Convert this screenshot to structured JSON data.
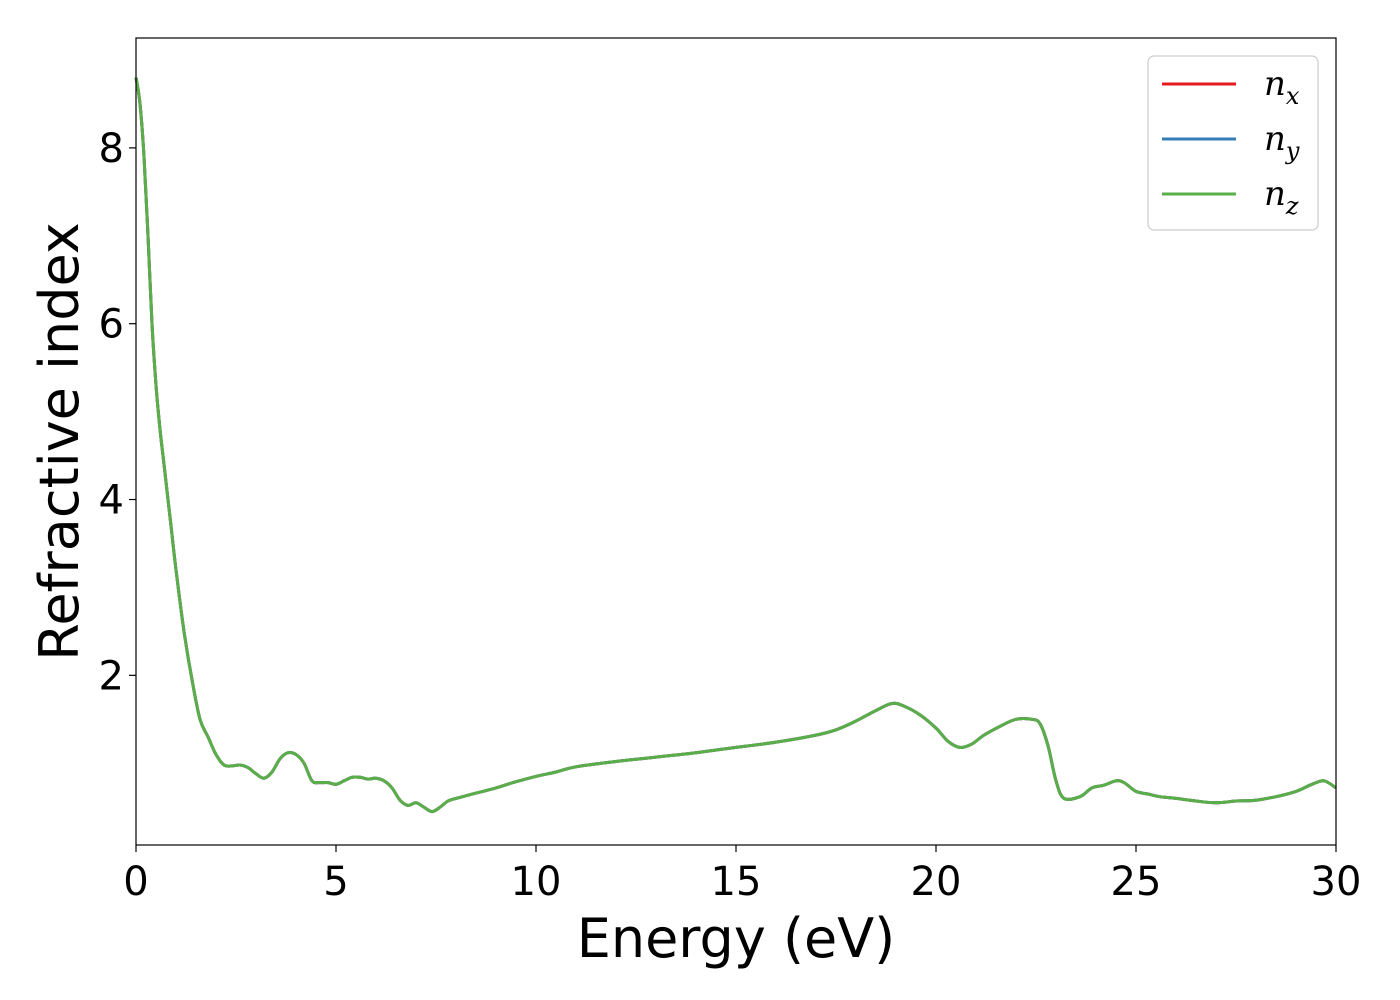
{
  "chart_data": {
    "type": "line",
    "xlabel": "Energy (eV)",
    "ylabel": "Refractive index",
    "xlim": [
      0,
      30
    ],
    "ylim": [
      0.07,
      9.25
    ],
    "xticks": [
      0,
      5,
      10,
      15,
      20,
      25,
      30
    ],
    "yticks": [
      2,
      4,
      6,
      8
    ],
    "legend_position": "top-right",
    "grid": false,
    "series": [
      {
        "name": "n",
        "subscript": "x",
        "color": "#e41a1c"
      },
      {
        "name": "n",
        "subscript": "y",
        "color": "#377eb8"
      },
      {
        "name": "n",
        "subscript": "z",
        "color": "#5aae4a"
      }
    ],
    "x": [
      0,
      0.1,
      0.2,
      0.3,
      0.4,
      0.5,
      0.6,
      0.7,
      0.8,
      0.9,
      1.0,
      1.2,
      1.4,
      1.6,
      1.8,
      2.0,
      2.2,
      2.4,
      2.6,
      2.8,
      3.0,
      3.2,
      3.4,
      3.6,
      3.8,
      4.0,
      4.2,
      4.4,
      4.6,
      4.8,
      5.0,
      5.2,
      5.4,
      5.6,
      5.8,
      6.0,
      6.2,
      6.4,
      6.6,
      6.8,
      7.0,
      7.2,
      7.4,
      7.6,
      7.8,
      8.0,
      8.5,
      9.0,
      9.5,
      10.0,
      10.5,
      11.0,
      12.0,
      13.0,
      14.0,
      15.0,
      16.0,
      17.0,
      17.5,
      18.0,
      18.5,
      18.9,
      19.2,
      19.6,
      20.0,
      20.3,
      20.6,
      20.9,
      21.2,
      21.6,
      22.0,
      22.4,
      22.6,
      22.8,
      23.0,
      23.2,
      23.6,
      23.9,
      24.2,
      24.5,
      24.7,
      25.0,
      25.3,
      25.6,
      26.0,
      26.5,
      27.0,
      27.5,
      28.0,
      28.5,
      29.0,
      29.4,
      29.7,
      30.0
    ],
    "y": [
      8.8,
      8.5,
      7.9,
      7.0,
      6.0,
      5.3,
      4.8,
      4.4,
      4.0,
      3.6,
      3.2,
      2.5,
      1.95,
      1.5,
      1.3,
      1.1,
      0.98,
      0.97,
      0.98,
      0.95,
      0.88,
      0.83,
      0.9,
      1.05,
      1.12,
      1.1,
      1.0,
      0.8,
      0.78,
      0.78,
      0.76,
      0.8,
      0.84,
      0.84,
      0.82,
      0.83,
      0.8,
      0.72,
      0.58,
      0.52,
      0.55,
      0.5,
      0.45,
      0.5,
      0.57,
      0.6,
      0.66,
      0.72,
      0.79,
      0.85,
      0.9,
      0.96,
      1.02,
      1.07,
      1.12,
      1.18,
      1.24,
      1.32,
      1.38,
      1.48,
      1.6,
      1.68,
      1.65,
      1.55,
      1.4,
      1.25,
      1.18,
      1.22,
      1.32,
      1.42,
      1.5,
      1.5,
      1.45,
      1.2,
      0.8,
      0.6,
      0.62,
      0.72,
      0.75,
      0.8,
      0.78,
      0.68,
      0.65,
      0.62,
      0.6,
      0.57,
      0.55,
      0.57,
      0.58,
      0.62,
      0.68,
      0.76,
      0.8,
      0.72
    ]
  }
}
